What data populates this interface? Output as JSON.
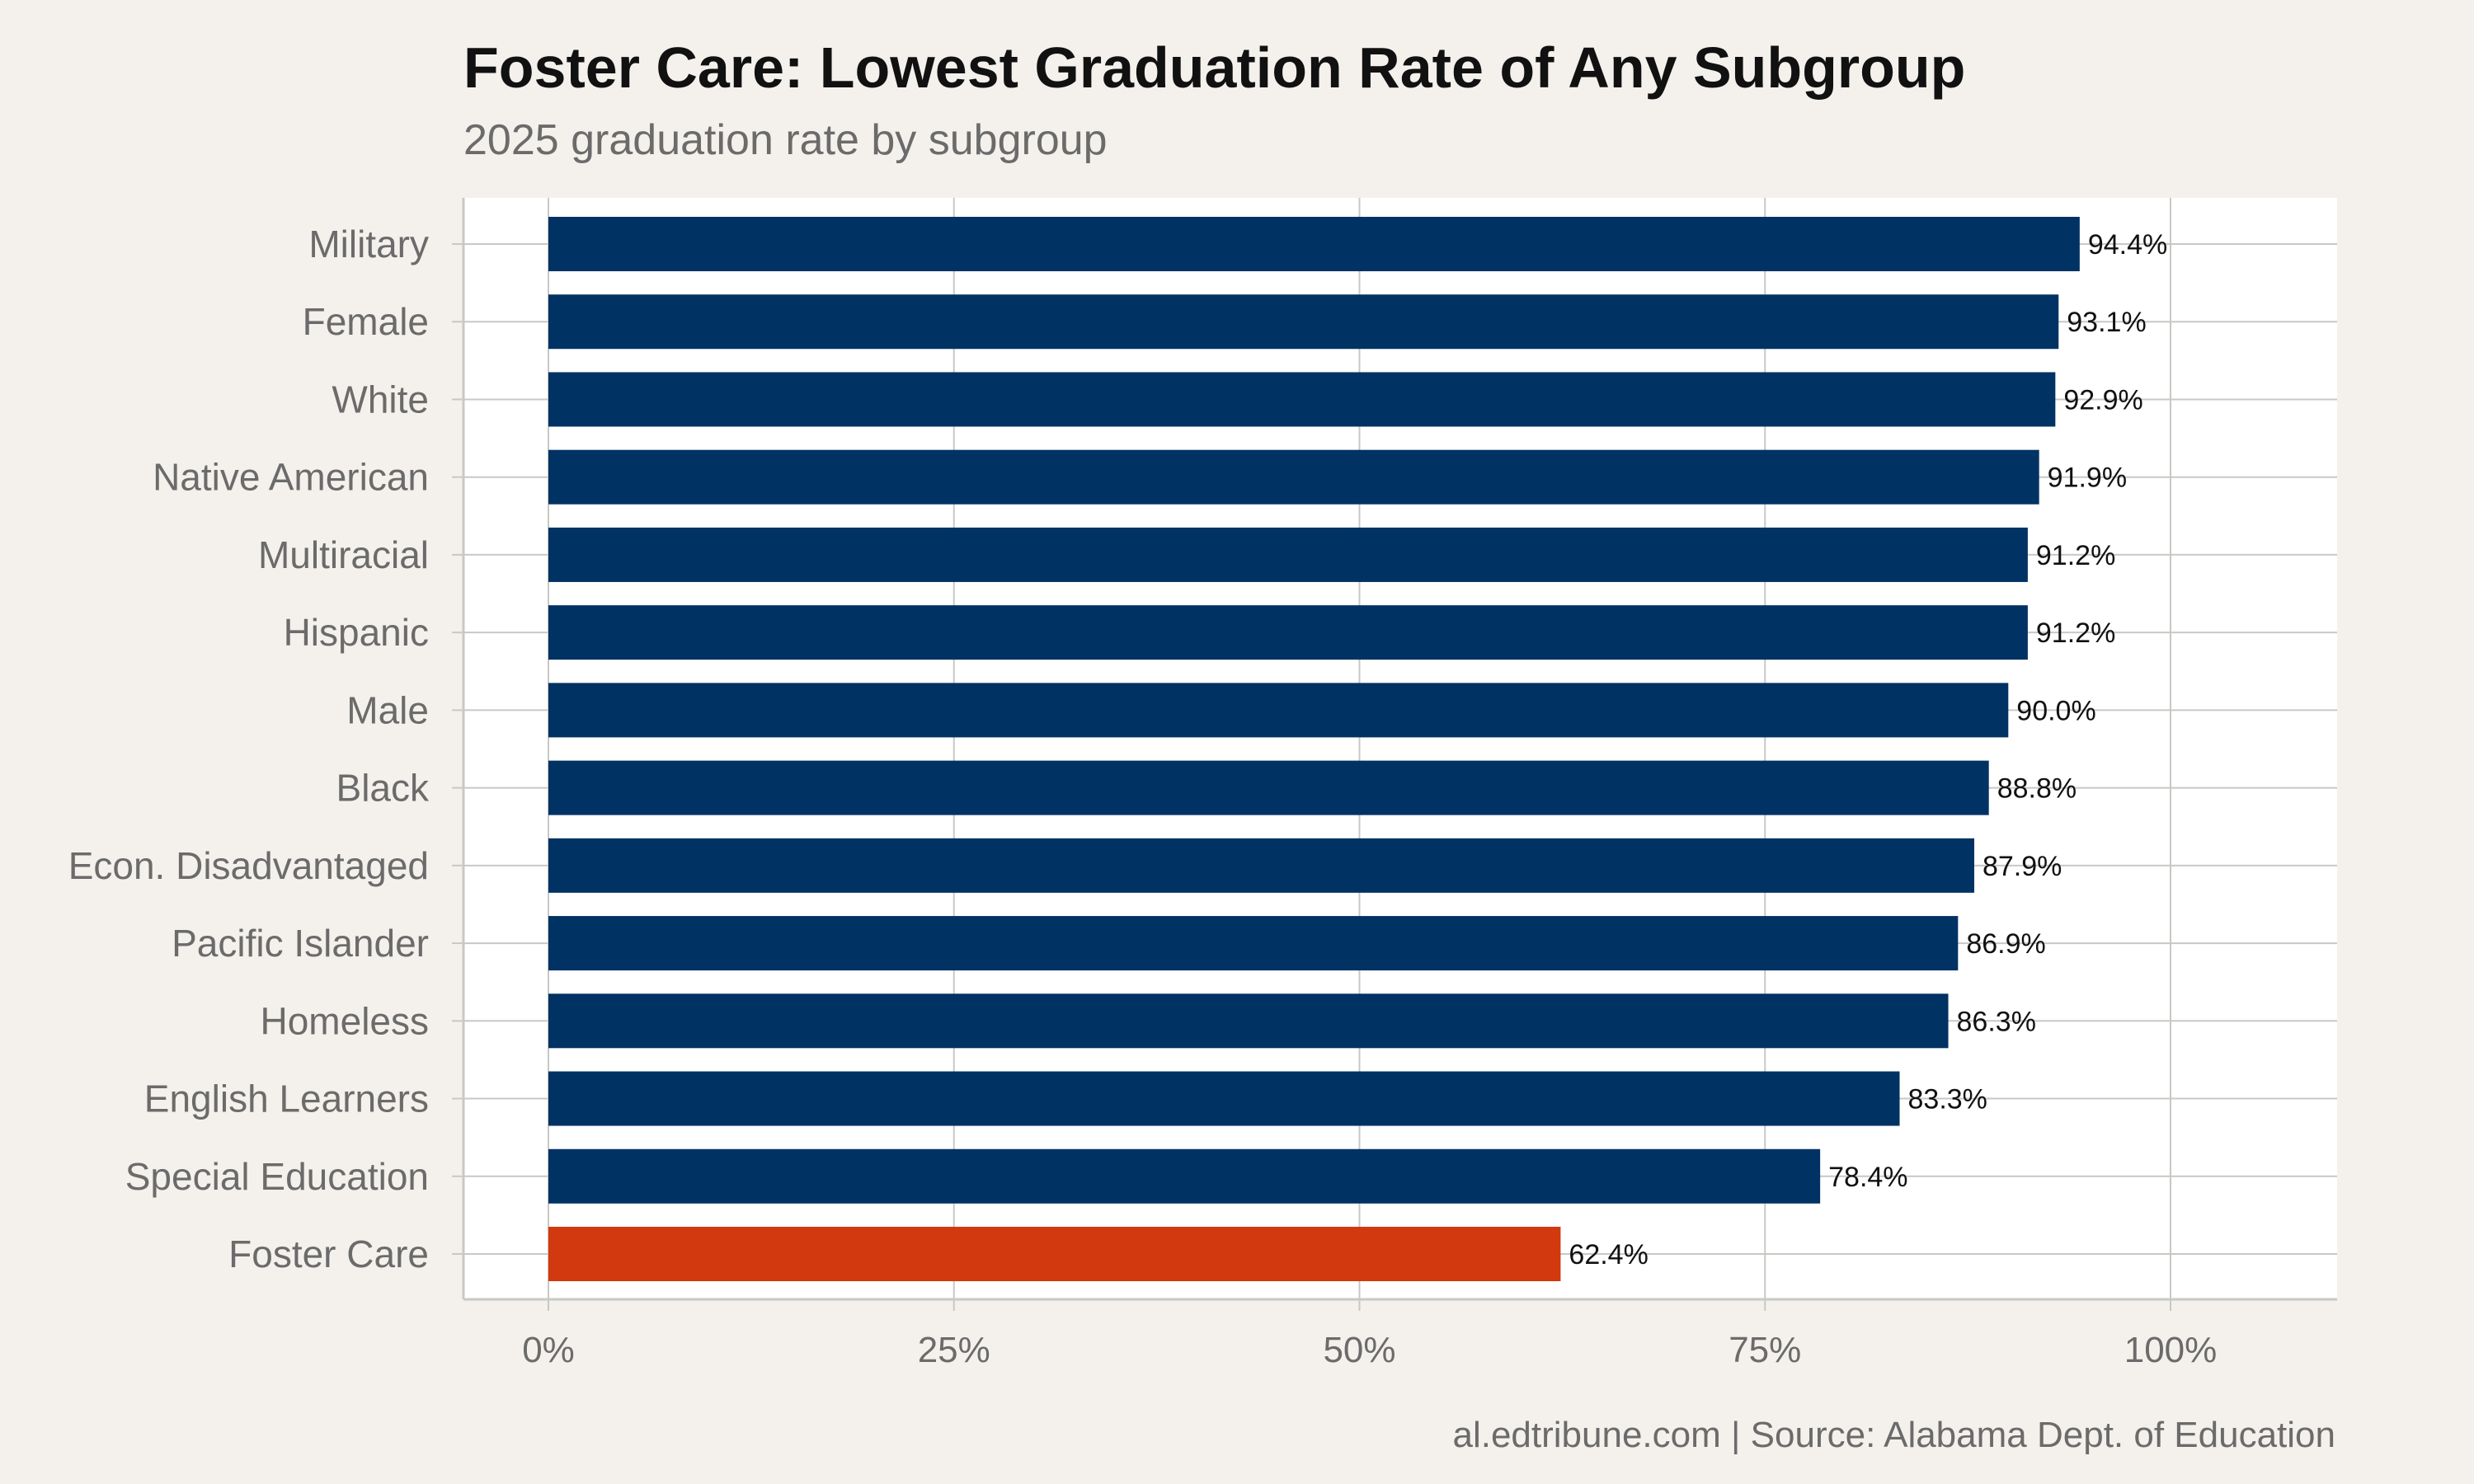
{
  "chart_data": {
    "type": "bar",
    "orientation": "horizontal",
    "title": "Foster Care: Lowest Graduation Rate of Any Subgroup",
    "subtitle": "2025 graduation rate by subgroup",
    "caption": "al.edtribune.com | Source: Alabama Dept. of Education",
    "categories": [
      "Military",
      "Female",
      "White",
      "Native American",
      "Multiracial",
      "Hispanic",
      "Male",
      "Black",
      "Econ. Disadvantaged",
      "Pacific Islander",
      "Homeless",
      "English Learners",
      "Special Education",
      "Foster Care"
    ],
    "values": [
      94.4,
      93.1,
      92.9,
      91.9,
      91.2,
      91.2,
      90.0,
      88.8,
      87.9,
      86.9,
      86.3,
      83.3,
      78.4,
      62.4
    ],
    "value_labels": [
      "94.4%",
      "93.1%",
      "92.9%",
      "91.9%",
      "91.2%",
      "91.2%",
      "90.0%",
      "88.8%",
      "87.9%",
      "86.9%",
      "86.3%",
      "83.3%",
      "78.4%",
      "62.4%"
    ],
    "xlim": [
      0,
      110
    ],
    "x_ticks": [
      0,
      25,
      50,
      75,
      100
    ],
    "x_tick_labels": [
      "0%",
      "25%",
      "50%",
      "75%",
      "100%"
    ],
    "grid": true,
    "colors": {
      "default_bar": "#003263",
      "highlight_bar": "#d2390f",
      "background": "#f4f1ec",
      "panel": "#ffffff",
      "grid": "#c8c8c4"
    },
    "highlight_category": "Foster Care"
  }
}
